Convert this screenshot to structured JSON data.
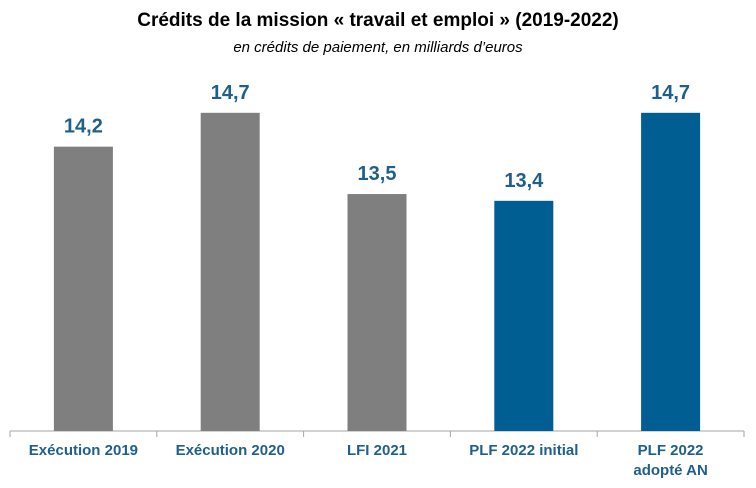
{
  "chart_data": {
    "type": "bar",
    "title": "Crédits de la mission « travail et emploi » (2019-2022)",
    "subtitle": "en crédits de paiement, en milliards d’euros",
    "categories": [
      "Exécution 2019",
      "Exécution 2020",
      "LFI 2021",
      "PLF 2022 initial",
      "PLF 2022 adopté AN"
    ],
    "values": [
      14.2,
      14.7,
      13.5,
      13.4,
      14.7
    ],
    "value_labels": [
      "14,2",
      "14,7",
      "13,5",
      "13,4",
      "14,7"
    ],
    "bar_colors": [
      "#7f7f7f",
      "#7f7f7f",
      "#7f7f7f",
      "#005e93",
      "#005e93"
    ],
    "label_color": "#1f5f8b",
    "ylim": [
      10,
      15.5
    ],
    "grid": false,
    "legend": "none"
  }
}
